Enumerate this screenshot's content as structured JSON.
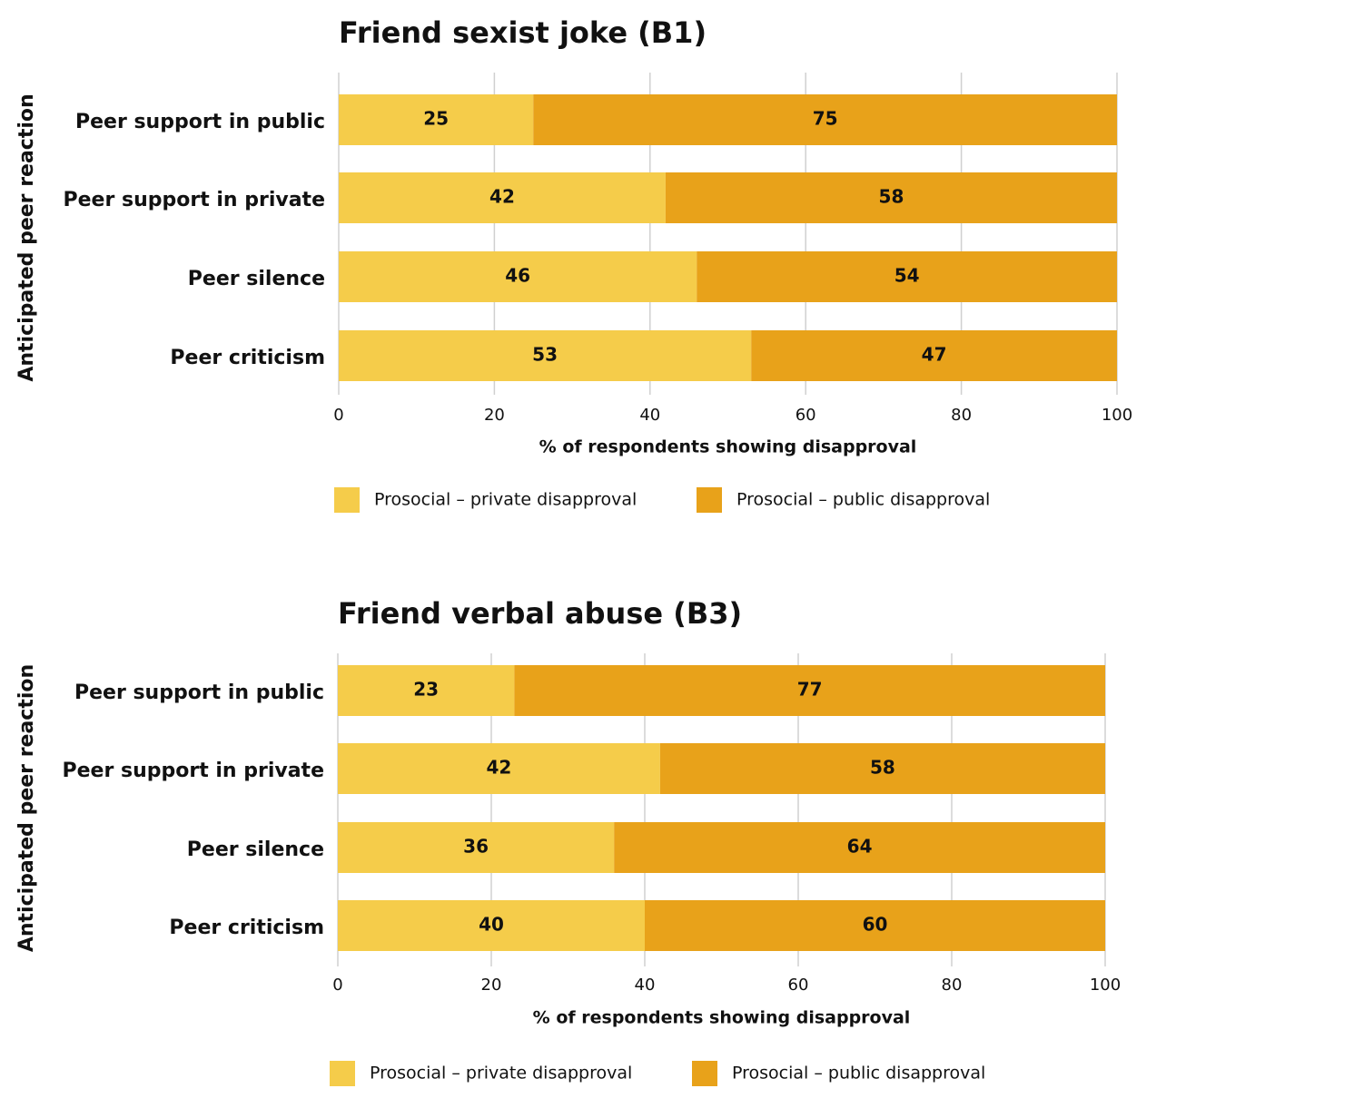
{
  "chart_data": [
    {
      "type": "bar",
      "orientation": "horizontal",
      "stacked": true,
      "title": "Friend sexist joke (B1)",
      "xlabel": "% of respondents showing disapproval",
      "ylabel": "Anticipated peer reaction",
      "categories": [
        "Peer support in public",
        "Peer support in private",
        "Peer silence",
        "Peer criticism"
      ],
      "series": [
        {
          "name": "Prosocial – private disapproval",
          "color": "#f5cc4a",
          "values": [
            25,
            42,
            46,
            53
          ]
        },
        {
          "name": "Prosocial – public disapproval",
          "color": "#e8a21a",
          "values": [
            75,
            58,
            54,
            47
          ]
        }
      ],
      "xlim": [
        0,
        100
      ],
      "xticks": [
        0,
        20,
        40,
        60,
        80,
        100
      ],
      "grid": true,
      "legend": "bottom"
    },
    {
      "type": "bar",
      "orientation": "horizontal",
      "stacked": true,
      "title": "Friend verbal abuse (B3)",
      "xlabel": "% of respondents showing disapproval",
      "ylabel": "Anticipated peer reaction",
      "categories": [
        "Peer support in public",
        "Peer support in private",
        "Peer silence",
        "Peer criticism"
      ],
      "series": [
        {
          "name": "Prosocial – private disapproval",
          "color": "#f5cc4a",
          "values": [
            23,
            42,
            36,
            40
          ]
        },
        {
          "name": "Prosocial – public disapproval",
          "color": "#e8a21a",
          "values": [
            77,
            58,
            64,
            60
          ]
        }
      ],
      "xlim": [
        0,
        100
      ],
      "xticks": [
        0,
        20,
        40,
        60,
        80,
        100
      ],
      "grid": true,
      "legend": "bottom"
    }
  ]
}
